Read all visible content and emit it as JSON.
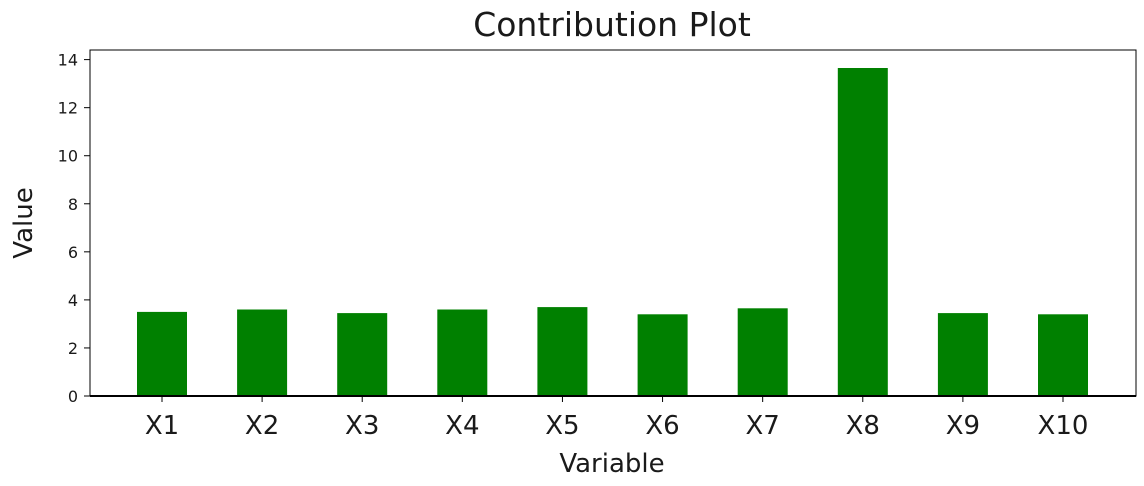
{
  "chart_data": {
    "type": "bar",
    "title": "Contribution Plot",
    "xlabel": "Variable",
    "ylabel": "Value",
    "categories": [
      "X1",
      "X2",
      "X3",
      "X4",
      "X5",
      "X6",
      "X7",
      "X8",
      "X9",
      "X10"
    ],
    "values": [
      3.5,
      3.6,
      3.45,
      3.6,
      3.7,
      3.4,
      3.65,
      13.65,
      3.45,
      3.4
    ],
    "ylim": [
      0,
      14.4
    ],
    "yticks": [
      0,
      2,
      4,
      6,
      8,
      10,
      12,
      14
    ],
    "grid": false,
    "bar_color": "#008000",
    "legend": "none"
  }
}
